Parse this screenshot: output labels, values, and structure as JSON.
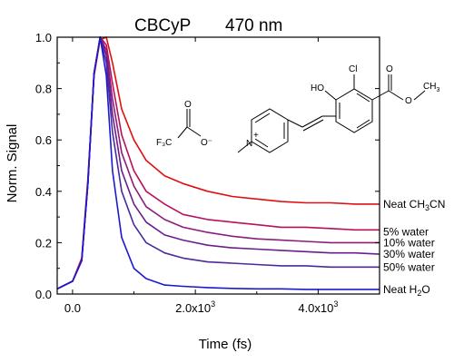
{
  "chart_data": {
    "type": "line",
    "title_compound": "CBCyP",
    "title_wavelength": "470 nm",
    "xlabel": "Time (fs)",
    "ylabel": "Norm. Signal",
    "xlim": [
      -250,
      5000
    ],
    "ylim": [
      0,
      1.0
    ],
    "xticks": [
      0,
      2000,
      4000
    ],
    "xtick_labels": [
      "0.0",
      "2.0x10",
      "4.0x10"
    ],
    "xtick_exponent": "3",
    "yticks": [
      0,
      0.2,
      0.4,
      0.6,
      0.8,
      1.0
    ],
    "ytick_labels": [
      "0.0",
      "0.2",
      "0.4",
      "0.6",
      "0.8",
      "1.0"
    ],
    "grid": false,
    "series": [
      {
        "name": "Neat CH3CN",
        "label_main": "Neat CH",
        "label_sub": "3",
        "label_tail": "CN",
        "color": "#e01010",
        "x": [
          -250,
          0,
          150,
          250,
          350,
          450,
          550,
          650,
          800,
          1000,
          1200,
          1500,
          1800,
          2200,
          2600,
          3000,
          3400,
          3800,
          4200,
          4600,
          5000
        ],
        "y": [
          0.02,
          0.05,
          0.14,
          0.45,
          0.85,
          0.99,
          1.0,
          0.9,
          0.72,
          0.6,
          0.52,
          0.46,
          0.43,
          0.4,
          0.38,
          0.37,
          0.36,
          0.355,
          0.355,
          0.35,
          0.35
        ]
      },
      {
        "name": "5% water",
        "color": "#b8105a",
        "x": [
          -250,
          0,
          150,
          250,
          350,
          450,
          550,
          650,
          800,
          1000,
          1200,
          1500,
          1800,
          2200,
          2600,
          3000,
          3400,
          3800,
          4200,
          4600,
          5000
        ],
        "y": [
          0.02,
          0.05,
          0.13,
          0.44,
          0.86,
          1.0,
          0.97,
          0.82,
          0.62,
          0.48,
          0.4,
          0.35,
          0.31,
          0.29,
          0.28,
          0.27,
          0.26,
          0.26,
          0.255,
          0.25,
          0.25
        ]
      },
      {
        "name": "10% water",
        "color": "#8c1c7e",
        "x": [
          -250,
          0,
          150,
          250,
          350,
          450,
          550,
          650,
          800,
          1000,
          1200,
          1500,
          1800,
          2200,
          2600,
          3000,
          3400,
          3800,
          4200,
          4600,
          5000
        ],
        "y": [
          0.02,
          0.05,
          0.13,
          0.43,
          0.86,
          1.0,
          0.95,
          0.76,
          0.55,
          0.42,
          0.34,
          0.29,
          0.26,
          0.24,
          0.225,
          0.215,
          0.21,
          0.205,
          0.2,
          0.2,
          0.2
        ]
      },
      {
        "name": "30% water",
        "color": "#6a1e8c",
        "x": [
          -250,
          0,
          150,
          250,
          350,
          450,
          550,
          650,
          800,
          1000,
          1200,
          1500,
          1800,
          2200,
          2600,
          3000,
          3400,
          3800,
          4200,
          4600,
          5000
        ],
        "y": [
          0.02,
          0.05,
          0.13,
          0.43,
          0.86,
          1.0,
          0.93,
          0.7,
          0.48,
          0.35,
          0.28,
          0.23,
          0.21,
          0.19,
          0.18,
          0.175,
          0.17,
          0.165,
          0.16,
          0.16,
          0.155
        ]
      },
      {
        "name": "50% water",
        "color": "#4a2a9e",
        "x": [
          -250,
          0,
          150,
          250,
          350,
          450,
          550,
          650,
          800,
          1000,
          1200,
          1500,
          1800,
          2200,
          2600,
          3000,
          3400,
          3800,
          4200,
          4600,
          5000
        ],
        "y": [
          0.02,
          0.05,
          0.13,
          0.43,
          0.86,
          1.0,
          0.9,
          0.63,
          0.4,
          0.27,
          0.2,
          0.16,
          0.14,
          0.125,
          0.12,
          0.115,
          0.11,
          0.11,
          0.105,
          0.105,
          0.105
        ]
      },
      {
        "name": "Neat H2O",
        "label_main": "Neat H",
        "label_sub": "2",
        "label_tail": "O",
        "color": "#1a1ad0",
        "x": [
          -250,
          0,
          150,
          250,
          350,
          450,
          550,
          650,
          800,
          1000,
          1200,
          1500,
          1800,
          2200,
          2600,
          3000,
          3400,
          3800,
          4200,
          4600,
          5000
        ],
        "y": [
          0.02,
          0.05,
          0.13,
          0.43,
          0.86,
          1.0,
          0.85,
          0.48,
          0.22,
          0.1,
          0.06,
          0.035,
          0.03,
          0.025,
          0.022,
          0.02,
          0.02,
          0.018,
          0.018,
          0.018,
          0.018
        ]
      }
    ],
    "annotations": {
      "anion_label_F3C": "F₃C",
      "anion_label_O": "O",
      "anion_label_Ominus": "O⁻",
      "cation_label_N": "N",
      "cation_label_plus": "+",
      "label_HO": "HO",
      "label_Cl": "Cl",
      "label_O_carbonyl": "O",
      "label_O_ester": "O",
      "label_CH": "CH",
      "label_CH_sub": "3"
    }
  }
}
